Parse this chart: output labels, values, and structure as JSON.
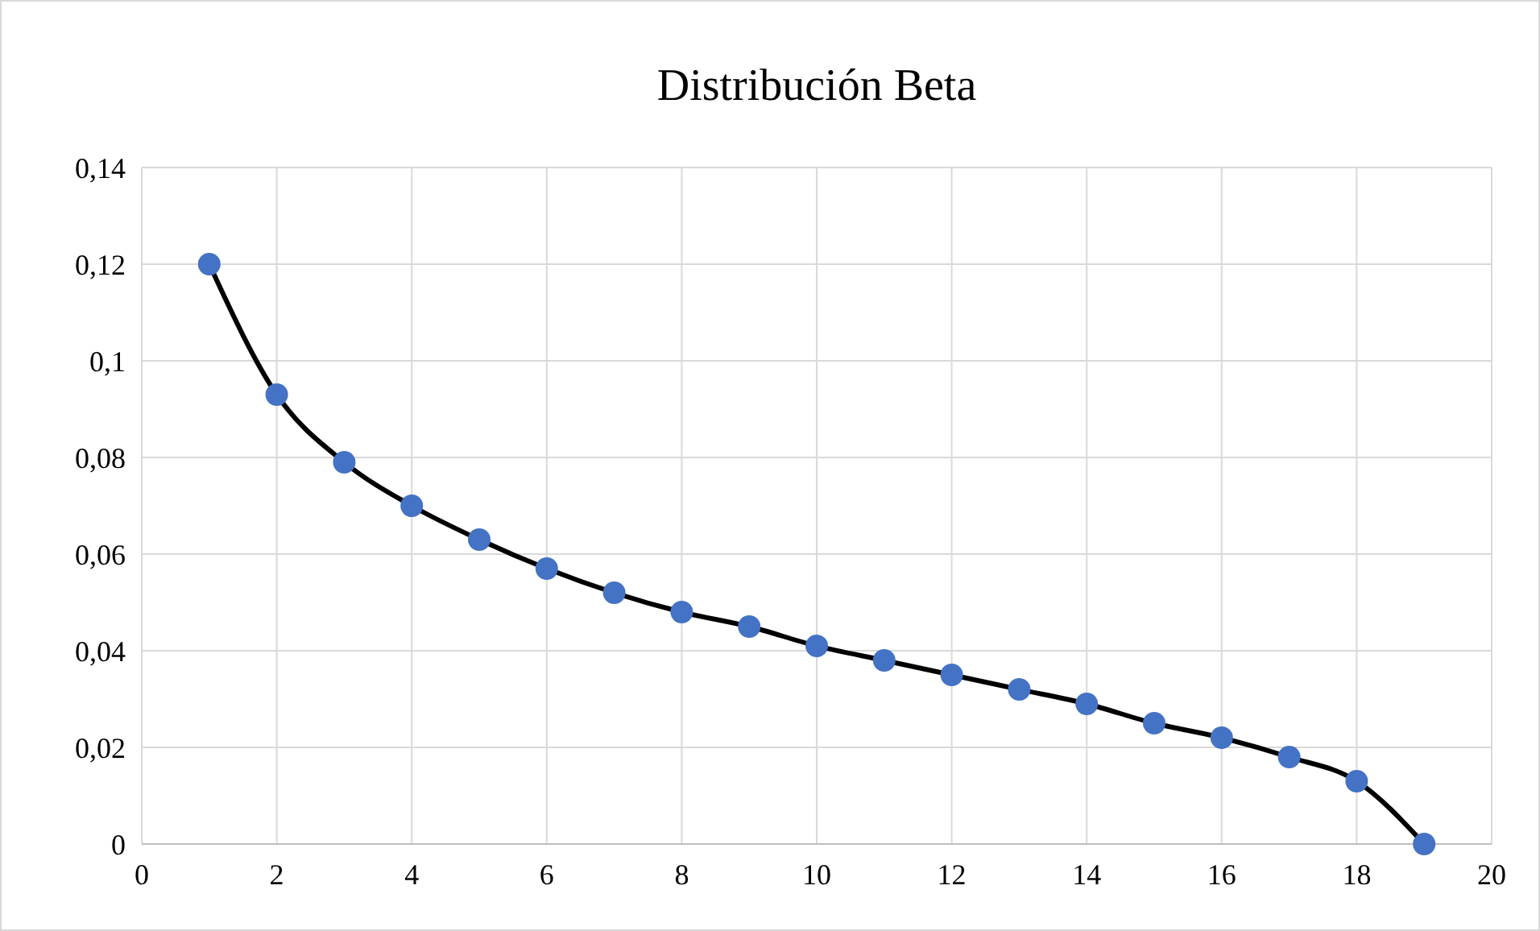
{
  "chart_data": {
    "type": "line",
    "title": "Distribución  Beta",
    "x": [
      1,
      2,
      3,
      4,
      5,
      6,
      7,
      8,
      9,
      10,
      11,
      12,
      13,
      14,
      15,
      16,
      17,
      18,
      19
    ],
    "series": [
      {
        "color": "#4472c4",
        "values": [
          0.12,
          0.093,
          0.079,
          0.07,
          0.063,
          0.057,
          0.052,
          0.048,
          0.045,
          0.041,
          0.038,
          0.035,
          0.032,
          0.029,
          0.025,
          0.022,
          0.018,
          0.013,
          0
        ]
      }
    ],
    "xlim": [
      0,
      20
    ],
    "xticks": [
      0,
      2,
      4,
      6,
      8,
      10,
      12,
      14,
      16,
      18,
      20
    ],
    "ylim": [
      0,
      0.14
    ],
    "yticks": [
      0,
      {
        "value": 0.02,
        "label": "0,02"
      },
      {
        "value": 0.04,
        "label": "0,04"
      },
      {
        "value": 0.06,
        "label": "0,06"
      },
      {
        "value": 0.08,
        "label": "0,08"
      },
      {
        "value": 0.1,
        "label": "0,1"
      },
      {
        "value": 0.12,
        "label": "0,12"
      },
      {
        "value": 0.14,
        "label": "0,14"
      }
    ],
    "grid": true,
    "marker": "circle",
    "line_style": "solid"
  }
}
